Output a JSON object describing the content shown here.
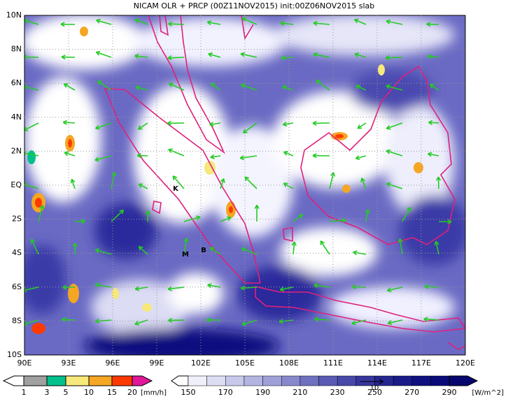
{
  "title": "NICAM OLR + PRCP (00Z11NOV2015) init:00Z06NOV2015 slab",
  "map": {
    "lat_labels": [
      "10N",
      "8N",
      "6N",
      "4N",
      "2N",
      "EQ",
      "2S",
      "4S",
      "6S",
      "8S",
      "10S"
    ],
    "lon_labels": [
      "90E",
      "93E",
      "96E",
      "99E",
      "102E",
      "105E",
      "108E",
      "111E",
      "114E",
      "117E",
      "120E"
    ],
    "places": [
      "K",
      "M",
      "B"
    ]
  },
  "legend": {
    "precip": {
      "labels": [
        1,
        3,
        5,
        10,
        15,
        20
      ],
      "unit": "[mm/h]"
    },
    "olr": {
      "labels": [
        150,
        170,
        190,
        210,
        230,
        250,
        270,
        290
      ],
      "unit": "[W/m^2]"
    },
    "vector_label": "10"
  }
}
